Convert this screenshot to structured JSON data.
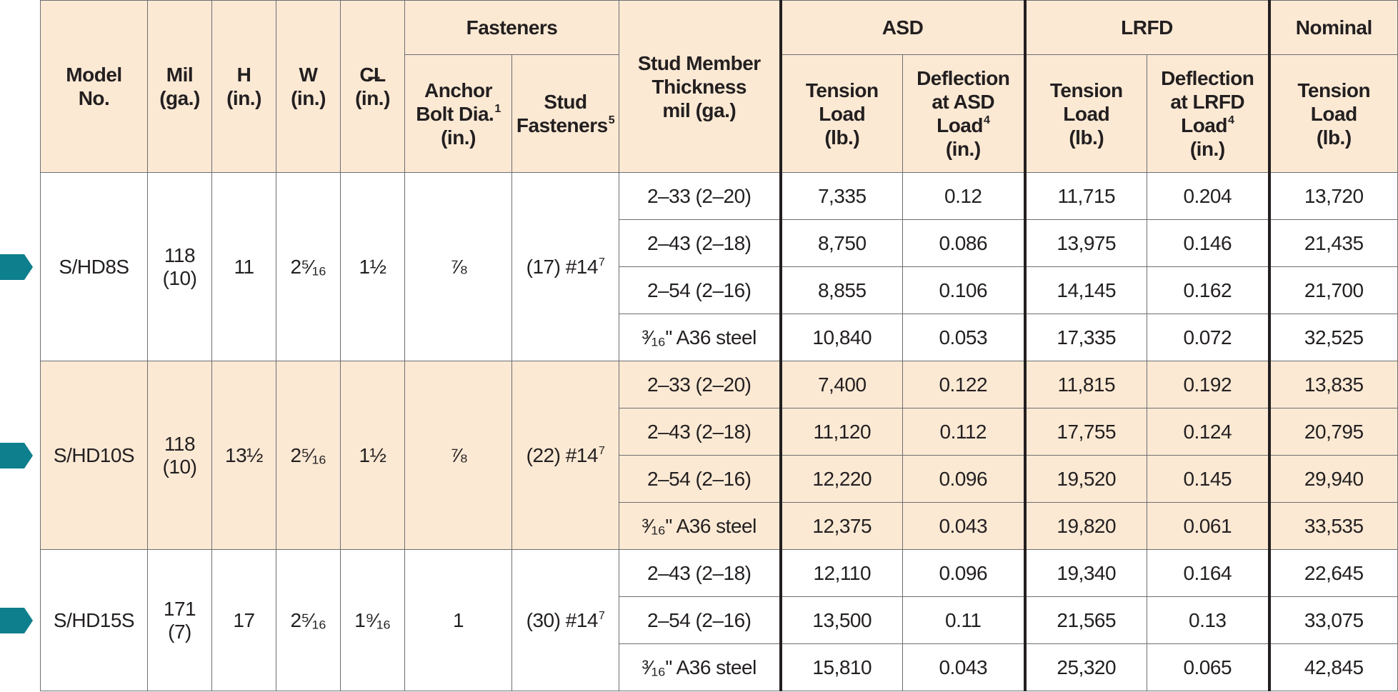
{
  "header": {
    "model_no": [
      "Model",
      "No."
    ],
    "mil": [
      "Mil",
      "(ga.)"
    ],
    "h": [
      "H",
      "(in.)"
    ],
    "w": [
      "W",
      "(in.)"
    ],
    "cl": [
      "C̶L",
      "(in.)"
    ],
    "fasteners": "Fasteners",
    "anchor_bolt": [
      "Anchor",
      "Bolt Dia.",
      "(in.)"
    ],
    "anchor_bolt_sup": "1",
    "stud_fasteners": [
      "Stud",
      "Fasteners"
    ],
    "stud_fasteners_sup": "5",
    "stud_member": [
      "Stud Member",
      "Thickness",
      "mil (ga.)"
    ],
    "asd": "ASD",
    "lrfd": "LRFD",
    "nominal": "Nominal",
    "tension_load": [
      "Tension",
      "Load",
      "(lb.)"
    ],
    "defl_asd": [
      "Deflection",
      "at ASD",
      "Load",
      "(in.)"
    ],
    "defl_asd_sup": "4",
    "defl_lrfd": [
      "Deflection",
      "at LRFD",
      "Load",
      "(in.)"
    ],
    "defl_lrfd_sup": "4"
  },
  "models": [
    {
      "model": "S/HD8S",
      "mil": [
        "118",
        "(10)"
      ],
      "h": "11",
      "w": "2⁵⁄₁₆",
      "cl": "1½",
      "anchor": "⅞",
      "stud_fasteners": "(17) #14",
      "stud_fasteners_sup": "7",
      "rows": [
        {
          "thickness": "2–33 (2–20)",
          "asd_tension": "7,335",
          "asd_defl": "0.12",
          "lrfd_tension": "11,715",
          "lrfd_defl": "0.204",
          "nominal_tension": "13,720"
        },
        {
          "thickness": "2–43 (2–18)",
          "asd_tension": "8,750",
          "asd_defl": "0.086",
          "lrfd_tension": "13,975",
          "lrfd_defl": "0.146",
          "nominal_tension": "21,435"
        },
        {
          "thickness": "2–54 (2–16)",
          "asd_tension": "8,855",
          "asd_defl": "0.106",
          "lrfd_tension": "14,145",
          "lrfd_defl": "0.162",
          "nominal_tension": "21,700"
        },
        {
          "thickness": "³⁄₁₆\" A36 steel",
          "asd_tension": "10,840",
          "asd_defl": "0.053",
          "lrfd_tension": "17,335",
          "lrfd_defl": "0.072",
          "nominal_tension": "32,525"
        }
      ]
    },
    {
      "model": "S/HD10S",
      "mil": [
        "118",
        "(10)"
      ],
      "h": "13½",
      "w": "2⁵⁄₁₆",
      "cl": "1½",
      "anchor": "⅞",
      "stud_fasteners": "(22) #14",
      "stud_fasteners_sup": "7",
      "rows": [
        {
          "thickness": "2–33 (2–20)",
          "asd_tension": "7,400",
          "asd_defl": "0.122",
          "lrfd_tension": "11,815",
          "lrfd_defl": "0.192",
          "nominal_tension": "13,835"
        },
        {
          "thickness": "2–43 (2–18)",
          "asd_tension": "11,120",
          "asd_defl": "0.112",
          "lrfd_tension": "17,755",
          "lrfd_defl": "0.124",
          "nominal_tension": "20,795"
        },
        {
          "thickness": "2–54 (2–16)",
          "asd_tension": "12,220",
          "asd_defl": "0.096",
          "lrfd_tension": "19,520",
          "lrfd_defl": "0.145",
          "nominal_tension": "29,940"
        },
        {
          "thickness": "³⁄₁₆\" A36 steel",
          "asd_tension": "12,375",
          "asd_defl": "0.043",
          "lrfd_tension": "19,820",
          "lrfd_defl": "0.061",
          "nominal_tension": "33,535"
        }
      ]
    },
    {
      "model": "S/HD15S",
      "mil": [
        "171",
        "(7)"
      ],
      "h": "17",
      "w": "2⁵⁄₁₆",
      "cl": "1⁹⁄₁₆",
      "anchor": "1",
      "stud_fasteners": "(30) #14",
      "stud_fasteners_sup": "7",
      "rows": [
        {
          "thickness": "2–43 (2–18)",
          "asd_tension": "12,110",
          "asd_defl": "0.096",
          "lrfd_tension": "19,340",
          "lrfd_defl": "0.164",
          "nominal_tension": "22,645"
        },
        {
          "thickness": "2–54 (2–16)",
          "asd_tension": "13,500",
          "asd_defl": "0.11",
          "lrfd_tension": "21,565",
          "lrfd_defl": "0.13",
          "nominal_tension": "33,075"
        },
        {
          "thickness": "³⁄₁₆\" A36 steel",
          "asd_tension": "15,810",
          "asd_defl": "0.043",
          "lrfd_tension": "25,320",
          "lrfd_defl": "0.065",
          "nominal_tension": "42,845"
        }
      ]
    }
  ],
  "colors": {
    "header_fill": "#fbe9d4",
    "marker": "#0e7f8c",
    "rule": "#231f20"
  },
  "marker_icon": "teal-arrow-tab-icon"
}
